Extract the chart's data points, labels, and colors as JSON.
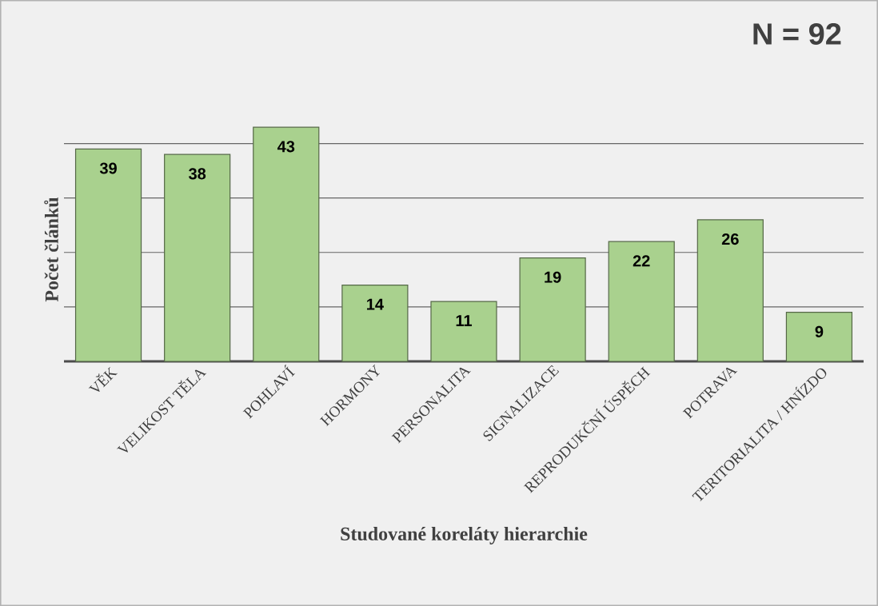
{
  "chart_data": {
    "type": "bar",
    "xlabel": "Studované koreláty hierarchie",
    "ylabel": "Počet článků",
    "categories": [
      "VĚK",
      "VELIKOST TĚLA",
      "POHLAVÍ",
      "HORMONY",
      "PERSONALITA",
      "SIGNALIZACE",
      "REPRODUKČNÍ ÚSPĚCH",
      "POTRAVA",
      "TERITORIALITA / HNÍZDO"
    ],
    "values": [
      39,
      38,
      43,
      14,
      11,
      19,
      22,
      26,
      9
    ],
    "color": "#a9d18e",
    "tick_labels": "x",
    "grid": "y",
    "data_labels": true,
    "annotations": [
      "N = 92"
    ]
  }
}
